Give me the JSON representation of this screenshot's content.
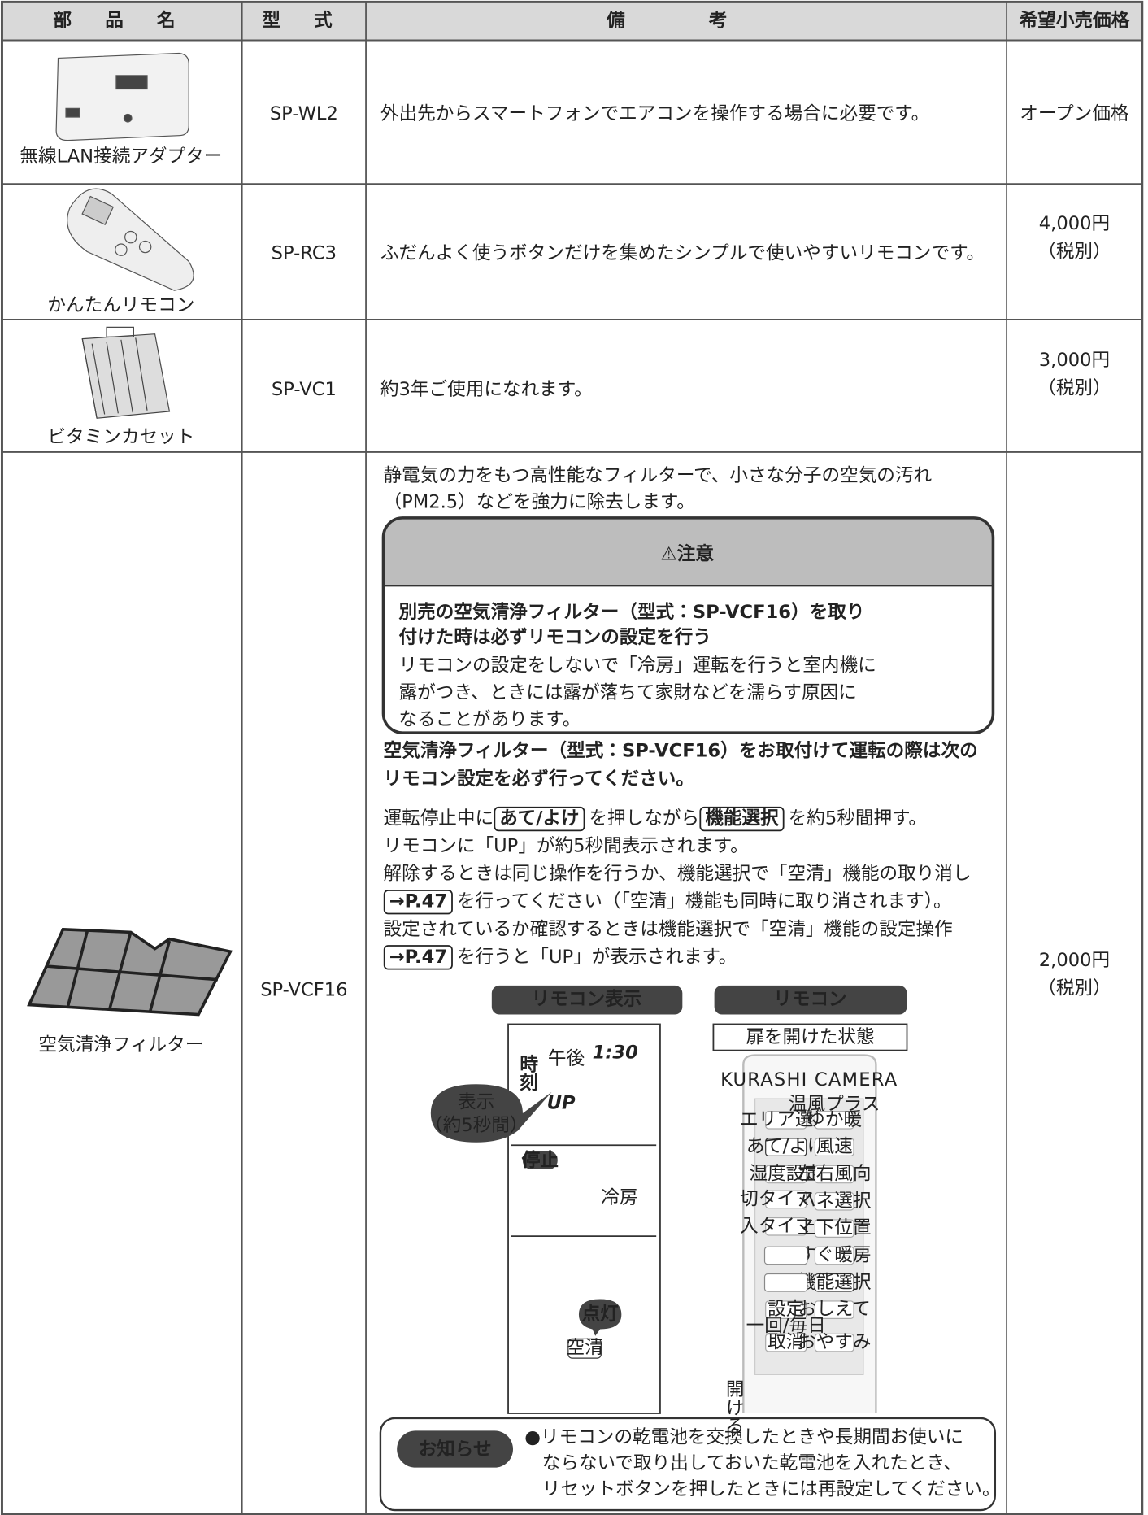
{
  "header": {
    "columns": [
      "部 品 名",
      "型 式",
      "備 考",
      "希望小売価格"
    ]
  },
  "rows": [
    {
      "name": "無線LAN接続アダプター",
      "model": "SP-WL2",
      "note": "外出先からスマートフォンでエアコンを操作する場合に必要です。",
      "price": [
        "オープン価格"
      ]
    },
    {
      "name": "かんたんリモコン",
      "model": "SP-RC3",
      "note": "ふだんよく使うボタンだけを集めたシンプルで使いやすいリモコンです。",
      "price": [
        "4,000円",
        "（税別）"
      ]
    },
    {
      "name": "ビタミンカセット",
      "model": "SP-VC1",
      "note": "約3年ご使用になれます。",
      "price": [
        "3,000円",
        "（税別）"
      ]
    },
    {
      "name": "空気清浄フィルター",
      "model": "SP-VCF16",
      "price": [
        "2,000円",
        "（税別）"
      ]
    }
  ],
  "filter_note": {
    "intro": [
      "静電気の力をもつ高性能なフィルターで、小さな分子の空気の汚れ",
      "（PM2.5）などを強力に除去します。"
    ],
    "caution": {
      "title": "⚠注意",
      "heading": [
        "別売の空気清浄フィルター（型式：SP-VCF16）を取り",
        "付けた時は必ずリモコンの設定を行う"
      ],
      "body": [
        "リモコンの設定をしないで「冷房」運転を行うと室内機に",
        "露がつき、ときには露が落ちて家財などを濡らす原因に",
        "なることがあります。"
      ]
    },
    "instruction": [
      "空気清浄フィルター（型式：SP-VCF16）をお取付けて運転の際は次の",
      "リモコン設定を必ず行ってください。"
    ],
    "steps": [
      [
        "運転停止中に",
        {
          "text": "あて/よけ",
          "boxed": true
        },
        "を押しながら",
        {
          "text": "機能選択",
          "boxed": true
        },
        "を約5秒間押す。"
      ],
      [
        "リモコンに「UP」が約5秒間表示されます。"
      ],
      [
        "解除するときは同じ操作を行うか、機能選択で「空清」機能の取り消し"
      ],
      [
        {
          "text": "→P.47",
          "boxed": true
        },
        "を行ってください（「空清」機能も同時に取り消されます）。"
      ],
      [
        "設定されているか確認するときは機能選択で「空清」機能の設定操作"
      ],
      [
        {
          "text": "→P.47",
          "boxed": true
        },
        "を行うと「UP」が表示されます。"
      ]
    ],
    "display": {
      "label": "リモコン表示",
      "clock": "時刻",
      "pm": "午後",
      "time": "1:30",
      "up": "UP",
      "callout": [
        "表示",
        "（約5秒間）"
      ],
      "stop": "停止",
      "mode": "冷房",
      "lit": "点灯",
      "air": "空清"
    },
    "remote": {
      "label": "リモコン",
      "state": "扉を開けた状態",
      "brand": "KURASHI CAMERA",
      "warm": "温風プラス",
      "left": [
        "エリア選択",
        "あて/よけ",
        "湿度設定",
        "切タイマー",
        "入タイマー",
        "設定",
        "取消"
      ],
      "right": [
        "ゆか暖",
        "風速",
        "左右風向",
        "ハネ選択",
        "上下位置",
        "すぐ暖房",
        "機能選択",
        "おしえて",
        "おやすみ"
      ],
      "once": "一回/毎日",
      "open": "開ける"
    },
    "notice": {
      "label": "お知らせ",
      "lines": [
        "●リモコンの乾電池を交換したときや長期間お使いに",
        "ならないで取り出しておいた乾電池を入れたとき、",
        "リセットボタンを押したときには再設定してください。"
      ]
    }
  }
}
